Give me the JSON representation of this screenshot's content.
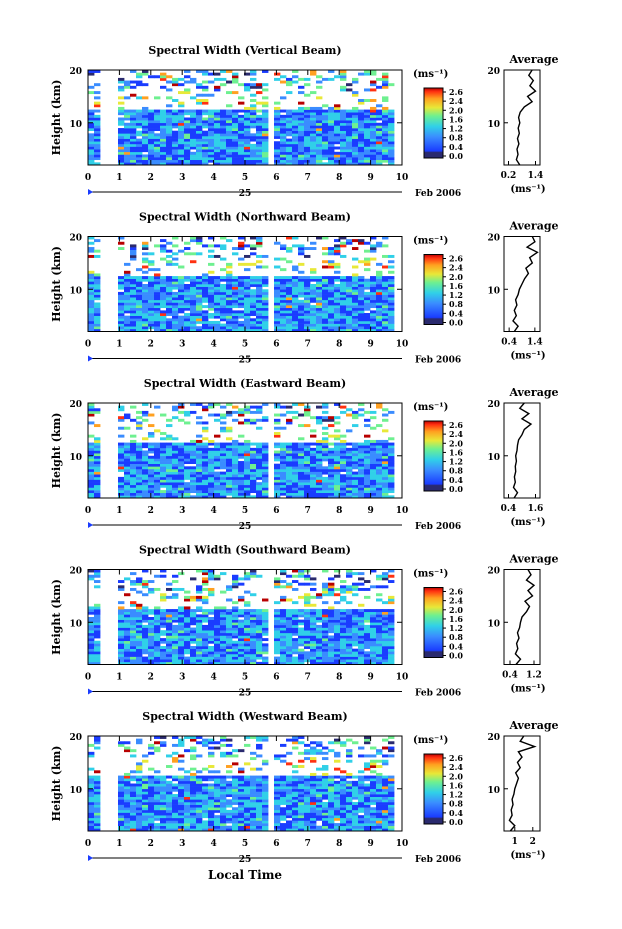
{
  "figure": {
    "date_label": "Feb 2006",
    "day_label": "25",
    "xlabel": "Local Time",
    "x_ticks": [
      "0",
      "1",
      "2",
      "3",
      "4",
      "5",
      "6",
      "7",
      "8",
      "9",
      "10"
    ],
    "colorbar_unit": "(ms⁻¹)",
    "colorbar_ticks": [
      "2.6",
      "2.4",
      "2.0",
      "1.6",
      "1.2",
      "0.8",
      "0.4",
      "0.0"
    ],
    "average_title": "Average",
    "average_xlabel": "(ms⁻¹)"
  },
  "chart_data": [
    {
      "type": "heatmap",
      "title": "Spectral Width (Vertical Beam)",
      "ylabel": "Height (km)",
      "y_ticks": [
        "20",
        "10"
      ],
      "xlim": [
        0,
        10
      ],
      "ylim": [
        2,
        20
      ],
      "data_gaps_hours": [
        [
          0.35,
          0.95
        ],
        [
          5.75,
          5.95
        ]
      ],
      "colorscale": [
        "#2a2a6e",
        "#1a3cff",
        "#3a8cff",
        "#30d0e8",
        "#6ef090",
        "#e8e838",
        "#ffa020",
        "#ff3010",
        "#b80000"
      ],
      "average_profile": {
        "type": "line",
        "x_ticks": [
          "0.2",
          "1.4"
        ],
        "xlim": [
          0.0,
          1.6
        ],
        "height_km": [
          2,
          3,
          4,
          5,
          6,
          7,
          8,
          9,
          10,
          11,
          12,
          13,
          14,
          15,
          16,
          17,
          18,
          19,
          20
        ],
        "values": [
          0.7,
          0.55,
          0.62,
          0.58,
          0.66,
          0.6,
          0.68,
          0.63,
          0.7,
          0.65,
          0.72,
          0.9,
          1.25,
          1.05,
          1.4,
          1.15,
          1.3,
          1.1,
          1.25
        ]
      }
    },
    {
      "type": "heatmap",
      "title": "Spectral Width (Northward Beam)",
      "ylabel": "Height (km)",
      "y_ticks": [
        "20",
        "10"
      ],
      "xlim": [
        0,
        10
      ],
      "ylim": [
        2,
        20
      ],
      "data_gaps_hours": [
        [
          0.35,
          0.95
        ],
        [
          5.75,
          5.95
        ]
      ],
      "colorscale": [
        "#2a2a6e",
        "#1a3cff",
        "#3a8cff",
        "#30d0e8",
        "#6ef090",
        "#e8e838",
        "#ffa020",
        "#ff3010",
        "#b80000"
      ],
      "average_profile": {
        "type": "line",
        "x_ticks": [
          "0.4",
          "1.4"
        ],
        "xlim": [
          0.2,
          1.6
        ],
        "height_km": [
          2,
          3,
          4,
          5,
          6,
          7,
          8,
          9,
          10,
          11,
          12,
          13,
          14,
          15,
          16,
          17,
          18,
          19,
          20
        ],
        "values": [
          0.6,
          0.75,
          0.55,
          0.68,
          0.6,
          0.7,
          0.65,
          0.75,
          0.8,
          0.9,
          1.0,
          1.15,
          1.05,
          1.3,
          1.2,
          1.5,
          1.1,
          1.4,
          1.3
        ]
      }
    },
    {
      "type": "heatmap",
      "title": "Spectral Width (Eastward Beam)",
      "ylabel": "Height (km)",
      "y_ticks": [
        "20",
        "10"
      ],
      "xlim": [
        0,
        10
      ],
      "ylim": [
        2,
        20
      ],
      "data_gaps_hours": [
        [
          0.35,
          0.95
        ],
        [
          5.75,
          5.95
        ]
      ],
      "colorscale": [
        "#2a2a6e",
        "#1a3cff",
        "#3a8cff",
        "#30d0e8",
        "#6ef090",
        "#e8e838",
        "#ffa020",
        "#ff3010",
        "#b80000"
      ],
      "average_profile": {
        "type": "line",
        "x_ticks": [
          "0.4",
          "1.6"
        ],
        "xlim": [
          0.2,
          1.8
        ],
        "height_km": [
          2,
          3,
          4,
          5,
          6,
          7,
          8,
          9,
          10,
          11,
          12,
          13,
          14,
          15,
          16,
          17,
          18,
          19,
          20
        ],
        "values": [
          0.65,
          0.8,
          0.62,
          0.7,
          0.66,
          0.72,
          0.7,
          0.75,
          0.72,
          0.78,
          0.8,
          0.85,
          1.0,
          1.1,
          1.4,
          1.0,
          1.3,
          0.9,
          1.1
        ]
      }
    },
    {
      "type": "heatmap",
      "title": "Spectral Width (Southward Beam)",
      "ylabel": "Height (km)",
      "y_ticks": [
        "20",
        "10"
      ],
      "xlim": [
        0,
        10
      ],
      "ylim": [
        2,
        20
      ],
      "data_gaps_hours": [
        [
          0.35,
          0.95
        ],
        [
          5.75,
          5.95
        ]
      ],
      "colorscale": [
        "#2a2a6e",
        "#1a3cff",
        "#3a8cff",
        "#30d0e8",
        "#6ef090",
        "#e8e838",
        "#ffa020",
        "#ff3010",
        "#b80000"
      ],
      "average_profile": {
        "type": "line",
        "x_ticks": [
          "0.4",
          "1.2"
        ],
        "xlim": [
          0.2,
          1.4
        ],
        "height_km": [
          2,
          3,
          4,
          5,
          6,
          7,
          8,
          9,
          10,
          11,
          12,
          13,
          14,
          15,
          16,
          17,
          18,
          19,
          20
        ],
        "values": [
          0.6,
          0.75,
          0.58,
          0.66,
          0.62,
          0.7,
          0.65,
          0.72,
          0.75,
          0.8,
          0.95,
          1.05,
          0.9,
          1.15,
          1.0,
          1.2,
          0.95,
          1.1,
          1.0
        ]
      }
    },
    {
      "type": "heatmap",
      "title": "Spectral Width (Westward Beam)",
      "ylabel": "Height (km)",
      "y_ticks": [
        "20",
        "10"
      ],
      "xlim": [
        0,
        10
      ],
      "ylim": [
        2,
        20
      ],
      "data_gaps_hours": [
        [
          0.35,
          0.95
        ],
        [
          5.75,
          5.95
        ]
      ],
      "colorscale": [
        "#2a2a6e",
        "#1a3cff",
        "#3a8cff",
        "#30d0e8",
        "#6ef090",
        "#e8e838",
        "#ffa020",
        "#ff3010",
        "#b80000"
      ],
      "average_profile": {
        "type": "line",
        "x_ticks": [
          "1",
          "2"
        ],
        "xlim": [
          0.4,
          2.4
        ],
        "height_km": [
          2,
          3,
          4,
          5,
          6,
          7,
          8,
          9,
          10,
          11,
          12,
          13,
          14,
          15,
          16,
          17,
          18,
          19,
          20
        ],
        "values": [
          0.75,
          1.0,
          0.7,
          0.85,
          0.8,
          0.9,
          0.85,
          0.95,
          1.0,
          1.1,
          1.2,
          1.05,
          1.3,
          1.15,
          1.4,
          1.2,
          2.1,
          1.3,
          1.5
        ]
      }
    }
  ]
}
